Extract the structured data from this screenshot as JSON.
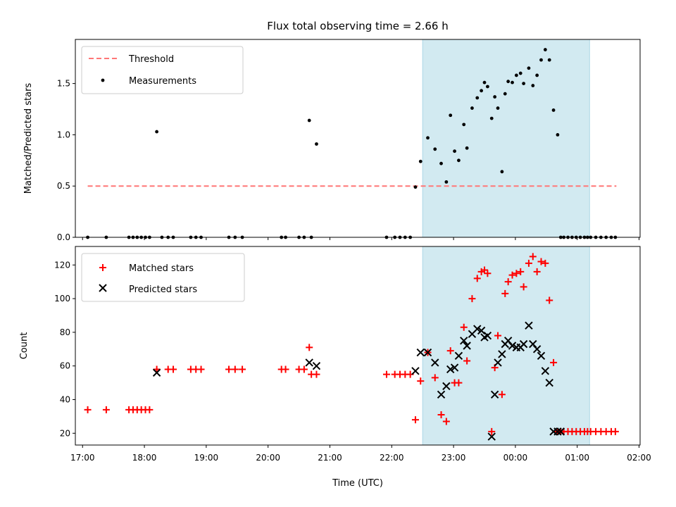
{
  "title": "Flux total observing time = 2.66 h",
  "colors": {
    "threshold": "#ff7777",
    "measurements": "#000000",
    "matched": "#ff0000",
    "predicted": "#000000",
    "span": "#add8e6"
  },
  "chart_data": [
    {
      "type": "scatter",
      "ylabel": "Matched/Predicted stars",
      "xlim": [
        "16:53",
        "02:01"
      ],
      "ylim": [
        0,
        1.93
      ],
      "yticks": [
        "0.0",
        "0.5",
        "1.0",
        "1.5"
      ],
      "shaded_span": [
        "22:30",
        "01:12"
      ],
      "legend": {
        "location": "top-left",
        "entries": [
          "Threshold",
          "Measurements"
        ]
      },
      "threshold": {
        "name": "Threshold",
        "y": 0.5,
        "x": [
          "17:05",
          "01:38"
        ]
      },
      "series": [
        {
          "name": "Measurements",
          "x": [
            "17:05",
            "17:23",
            "17:45",
            "17:49",
            "17:53",
            "17:57",
            "18:01",
            "18:05",
            "18:12",
            "18:17",
            "18:23",
            "18:28",
            "18:45",
            "18:50",
            "18:55",
            "19:22",
            "19:28",
            "19:35",
            "20:13",
            "20:17",
            "20:30",
            "20:35",
            "20:40",
            "20:42",
            "20:47",
            "21:55",
            "22:03",
            "22:08",
            "22:13",
            "22:18",
            "22:23",
            "22:28",
            "22:35",
            "22:42",
            "22:48",
            "22:53",
            "22:57",
            "23:01",
            "23:05",
            "23:10",
            "23:13",
            "23:18",
            "23:23",
            "23:27",
            "23:30",
            "23:33",
            "23:37",
            "23:40",
            "23:43",
            "23:47",
            "23:50",
            "23:53",
            "23:57",
            "00:01",
            "00:05",
            "00:08",
            "00:13",
            "00:17",
            "00:21",
            "00:25",
            "00:29",
            "00:33",
            "00:37",
            "00:41",
            "00:44",
            "00:47",
            "00:51",
            "00:55",
            "00:59",
            "01:03",
            "01:07",
            "01:10",
            "01:13",
            "01:18",
            "01:23",
            "01:28",
            "01:33",
            "01:37"
          ],
          "y": [
            0,
            0,
            0,
            0,
            0,
            0,
            0,
            0,
            1.03,
            0,
            0,
            0,
            0,
            0,
            0,
            0,
            0,
            0,
            0,
            0,
            0,
            0,
            1.14,
            0,
            0.91,
            0,
            0,
            0,
            0,
            0,
            0.49,
            0.74,
            0.97,
            0.86,
            0.72,
            0.54,
            1.19,
            0.84,
            0.75,
            1.1,
            0.87,
            1.26,
            1.36,
            1.43,
            1.51,
            1.47,
            1.16,
            1.37,
            1.26,
            0.64,
            1.4,
            1.52,
            1.51,
            1.58,
            1.6,
            1.5,
            1.65,
            1.48,
            1.58,
            1.73,
            1.83,
            1.73,
            1.24,
            1.0,
            0,
            0,
            0,
            0,
            0,
            0,
            0,
            0,
            0,
            0,
            0,
            0,
            0,
            0
          ]
        }
      ]
    },
    {
      "type": "scatter",
      "xlabel": "Time (UTC)",
      "ylabel": "Count",
      "xlim": [
        "16:53",
        "02:01"
      ],
      "ylim": [
        13,
        131
      ],
      "yticks": [
        "20",
        "40",
        "60",
        "80",
        "100",
        "120"
      ],
      "xticks": [
        "17:00",
        "18:00",
        "19:00",
        "20:00",
        "21:00",
        "22:00",
        "23:00",
        "00:00",
        "01:00",
        "02:00"
      ],
      "shaded_span": [
        "22:30",
        "01:12"
      ],
      "legend": {
        "location": "top-left",
        "entries": [
          "Matched stars",
          "Predicted stars"
        ]
      },
      "series": [
        {
          "name": "Matched stars",
          "marker": "plus",
          "x": [
            "17:05",
            "17:23",
            "17:45",
            "17:49",
            "17:53",
            "17:57",
            "18:01",
            "18:05",
            "18:12",
            "18:23",
            "18:28",
            "18:45",
            "18:50",
            "18:55",
            "19:22",
            "19:28",
            "19:35",
            "20:13",
            "20:17",
            "20:30",
            "20:35",
            "20:40",
            "20:42",
            "20:47",
            "21:55",
            "22:03",
            "22:08",
            "22:13",
            "22:18",
            "22:23",
            "22:28",
            "22:35",
            "22:42",
            "22:48",
            "22:53",
            "22:57",
            "23:01",
            "23:05",
            "23:10",
            "23:13",
            "23:18",
            "23:23",
            "23:27",
            "23:30",
            "23:33",
            "23:37",
            "23:40",
            "23:43",
            "23:47",
            "23:50",
            "23:53",
            "23:57",
            "00:01",
            "00:05",
            "00:08",
            "00:13",
            "00:17",
            "00:21",
            "00:25",
            "00:29",
            "00:33",
            "00:37",
            "00:41",
            "00:44",
            "00:47",
            "00:51",
            "00:55",
            "00:59",
            "01:03",
            "01:07",
            "01:10",
            "01:13",
            "01:18",
            "01:23",
            "01:28",
            "01:33",
            "01:37"
          ],
          "y": [
            34,
            34,
            34,
            34,
            34,
            34,
            34,
            34,
            58,
            58,
            58,
            58,
            58,
            58,
            58,
            58,
            58,
            58,
            58,
            58,
            58,
            71,
            55,
            55,
            55,
            55,
            55,
            55,
            55,
            28,
            51,
            68,
            53,
            31,
            27,
            69,
            50,
            50,
            83,
            63,
            100,
            112,
            116,
            117,
            115,
            21,
            59,
            78,
            43,
            103,
            110,
            114,
            115,
            116,
            107,
            121,
            125,
            116,
            122,
            121,
            99,
            62,
            21,
            21,
            21,
            21,
            21,
            21,
            21,
            21,
            21,
            21,
            21,
            21,
            21,
            21,
            21
          ]
        },
        {
          "name": "Predicted stars",
          "marker": "cross",
          "x": [
            "18:12",
            "20:40",
            "20:47",
            "22:23",
            "22:28",
            "22:35",
            "22:42",
            "22:48",
            "22:53",
            "22:57",
            "23:01",
            "23:05",
            "23:10",
            "23:13",
            "23:18",
            "23:23",
            "23:27",
            "23:30",
            "23:33",
            "23:37",
            "23:40",
            "23:43",
            "23:47",
            "23:50",
            "23:53",
            "23:57",
            "00:01",
            "00:05",
            "00:08",
            "00:13",
            "00:17",
            "00:21",
            "00:25",
            "00:29",
            "00:33",
            "00:37",
            "00:41",
            "00:44"
          ],
          "y": [
            56,
            62,
            60,
            57,
            68,
            68,
            62,
            43,
            48,
            58,
            59,
            66,
            75,
            72,
            79,
            82,
            81,
            77,
            78,
            18,
            43,
            62,
            67,
            73,
            75,
            72,
            71,
            71,
            73,
            84,
            73,
            70,
            66,
            57,
            50,
            21,
            21,
            21
          ]
        }
      ]
    }
  ]
}
